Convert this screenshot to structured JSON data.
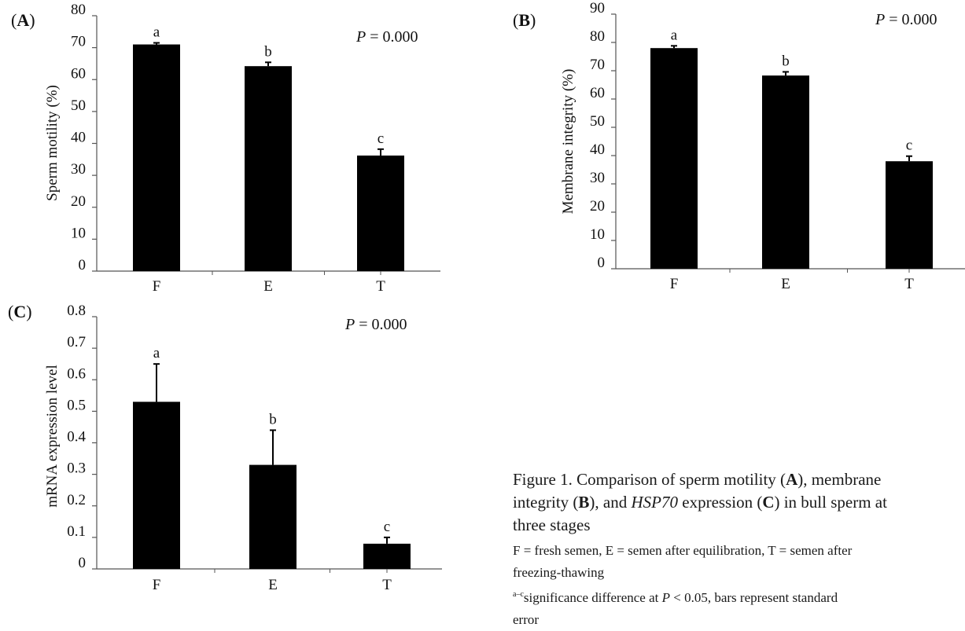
{
  "chart_data": [
    {
      "type": "bar",
      "panel_label": "A",
      "categories": [
        "F",
        "E",
        "T"
      ],
      "values": [
        71,
        64.2,
        36.2
      ],
      "errors": [
        0.5,
        1.2,
        2.0
      ],
      "significance_letters": [
        "a",
        "b",
        "c"
      ],
      "ylabel": "Sperm motility (%)",
      "ylim": [
        0,
        80
      ],
      "yticks": [
        "0",
        "10",
        "20",
        "30",
        "40",
        "50",
        "60",
        "70",
        "80"
      ],
      "p_value_prefix": "P",
      "p_value_text": " = 0.000",
      "grid": false,
      "color": "#000000"
    },
    {
      "type": "bar",
      "panel_label": "B",
      "categories": [
        "F",
        "E",
        "T"
      ],
      "values": [
        78,
        68.3,
        38
      ],
      "errors": [
        0.8,
        1.3,
        1.8
      ],
      "significance_letters": [
        "a",
        "b",
        "c"
      ],
      "ylabel": "Membrane integrity (%)",
      "ylim": [
        0,
        90
      ],
      "yticks": [
        "0",
        "10",
        "20",
        "30",
        "40",
        "50",
        "60",
        "70",
        "80",
        "90"
      ],
      "p_value_prefix": "P",
      "p_value_text": " = 0.000",
      "grid": false,
      "color": "#000000"
    },
    {
      "type": "bar",
      "panel_label": "C",
      "categories": [
        "F",
        "E",
        "T"
      ],
      "values": [
        0.53,
        0.33,
        0.08
      ],
      "errors": [
        0.12,
        0.11,
        0.02
      ],
      "significance_letters": [
        "a",
        "b",
        "c"
      ],
      "ylabel": "mRNA expression level",
      "ylim": [
        0,
        0.8
      ],
      "yticks": [
        "0",
        "0.1",
        "0.2",
        "0.3",
        "0.4",
        "0.5",
        "0.6",
        "0.7",
        "0.8"
      ],
      "p_value_prefix": "P",
      "p_value_text": " = 0.000",
      "grid": false,
      "color": "#000000"
    }
  ],
  "caption": {
    "title_prefix": "Figure 1. Comparison of sperm motility (",
    "title_a": "A",
    "title_mid1": "), membrane",
    "title_line2a": "integrity (",
    "title_b": "B",
    "title_mid2": "), and ",
    "title_gene": "HSP70",
    "title_mid3": " expression (",
    "title_c": "C",
    "title_mid4": ") in bull sperm at",
    "title_line3": "three stages",
    "note1_line1": "F = fresh semen, E = semen after equilibration, T = semen after",
    "note1_line2": "freezing-thawing",
    "note2_sup": "a–c",
    "note2_line1a": "significance difference at ",
    "note2_p": "P",
    "note2_line1b": " < 0.05, bars represent standard",
    "note2_line2": "error"
  }
}
